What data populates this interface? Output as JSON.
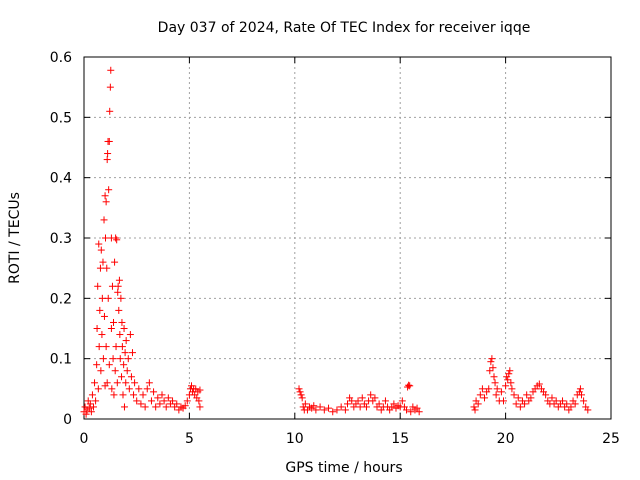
{
  "chart_data": {
    "type": "scatter",
    "title": "Day 037 of 2024, Rate Of TEC Index for receiver iqqe",
    "xlabel": "GPS time / hours",
    "ylabel": "ROTI / TECUs",
    "xlim": [
      0,
      25
    ],
    "ylim": [
      0,
      0.6
    ],
    "x_ticks": [
      "0",
      "5",
      "10",
      "15",
      "20",
      "25"
    ],
    "y_ticks": [
      "0",
      "0.1",
      "0.2",
      "0.3",
      "0.4",
      "0.5",
      "0.6"
    ],
    "grid": true,
    "marker": "plus",
    "color": "#ff0000",
    "series": [
      {
        "points": [
          [
            0.0,
            0.012
          ],
          [
            0.05,
            0.02
          ],
          [
            0.1,
            0.008
          ],
          [
            0.15,
            0.015
          ],
          [
            0.2,
            0.03
          ],
          [
            0.25,
            0.018
          ],
          [
            0.3,
            0.025
          ],
          [
            0.35,
            0.012
          ],
          [
            0.4,
            0.04
          ],
          [
            0.45,
            0.02
          ],
          [
            0.5,
            0.06
          ],
          [
            0.55,
            0.03
          ],
          [
            0.6,
            0.09
          ],
          [
            0.62,
            0.15
          ],
          [
            0.65,
            0.22
          ],
          [
            0.68,
            0.05
          ],
          [
            0.7,
            0.29
          ],
          [
            0.72,
            0.12
          ],
          [
            0.75,
            0.18
          ],
          [
            0.78,
            0.25
          ],
          [
            0.8,
            0.08
          ],
          [
            0.82,
            0.28
          ],
          [
            0.85,
            0.14
          ],
          [
            0.87,
            0.2
          ],
          [
            0.9,
            0.26
          ],
          [
            0.92,
            0.1
          ],
          [
            0.95,
            0.33
          ],
          [
            0.97,
            0.17
          ],
          [
            1.0,
            0.37
          ],
          [
            1.0,
            0.055
          ],
          [
            1.02,
            0.3
          ],
          [
            1.05,
            0.36
          ],
          [
            1.05,
            0.12
          ],
          [
            1.08,
            0.25
          ],
          [
            1.1,
            0.43
          ],
          [
            1.1,
            0.06
          ],
          [
            1.12,
            0.44
          ],
          [
            1.14,
            0.46
          ],
          [
            1.15,
            0.2
          ],
          [
            1.17,
            0.38
          ],
          [
            1.2,
            0.46
          ],
          [
            1.2,
            0.09
          ],
          [
            1.22,
            0.51
          ],
          [
            1.25,
            0.55
          ],
          [
            1.27,
            0.578
          ],
          [
            1.3,
            0.3
          ],
          [
            1.3,
            0.15
          ],
          [
            1.32,
            0.05
          ],
          [
            1.35,
            0.22
          ],
          [
            1.38,
            0.1
          ],
          [
            1.4,
            0.16
          ],
          [
            1.42,
            0.04
          ],
          [
            1.45,
            0.26
          ],
          [
            1.48,
            0.08
          ],
          [
            1.5,
            0.3
          ],
          [
            1.52,
            0.12
          ],
          [
            1.55,
            0.297
          ],
          [
            1.58,
            0.06
          ],
          [
            1.6,
            0.21
          ],
          [
            1.62,
            0.22
          ],
          [
            1.65,
            0.18
          ],
          [
            1.68,
            0.23
          ],
          [
            1.7,
            0.14
          ],
          [
            1.72,
            0.1
          ],
          [
            1.75,
            0.2
          ],
          [
            1.78,
            0.07
          ],
          [
            1.8,
            0.16
          ],
          [
            1.82,
            0.12
          ],
          [
            1.85,
            0.04
          ],
          [
            1.88,
            0.09
          ],
          [
            1.9,
            0.15
          ],
          [
            1.92,
            0.02
          ],
          [
            1.95,
            0.11
          ],
          [
            1.98,
            0.06
          ],
          [
            2.0,
            0.13
          ],
          [
            2.05,
            0.08
          ],
          [
            2.1,
            0.1
          ],
          [
            2.15,
            0.05
          ],
          [
            2.2,
            0.14
          ],
          [
            2.25,
            0.07
          ],
          [
            2.3,
            0.11
          ],
          [
            2.35,
            0.04
          ],
          [
            2.4,
            0.06
          ],
          [
            2.5,
            0.03
          ],
          [
            2.6,
            0.05
          ],
          [
            2.7,
            0.025
          ],
          [
            2.8,
            0.04
          ],
          [
            2.9,
            0.02
          ],
          [
            3.0,
            0.05
          ],
          [
            3.1,
            0.06
          ],
          [
            3.2,
            0.03
          ],
          [
            3.3,
            0.045
          ],
          [
            3.4,
            0.02
          ],
          [
            3.5,
            0.035
          ],
          [
            3.6,
            0.025
          ],
          [
            3.7,
            0.04
          ],
          [
            3.8,
            0.03
          ],
          [
            3.9,
            0.02
          ],
          [
            4.0,
            0.035
          ],
          [
            4.1,
            0.025
          ],
          [
            4.2,
            0.03
          ],
          [
            4.3,
            0.02
          ],
          [
            4.4,
            0.025
          ],
          [
            4.5,
            0.015
          ],
          [
            4.6,
            0.02
          ],
          [
            4.7,
            0.018
          ],
          [
            4.8,
            0.022
          ],
          [
            4.9,
            0.03
          ],
          [
            5.0,
            0.04
          ],
          [
            5.05,
            0.05
          ],
          [
            5.1,
            0.055
          ],
          [
            5.15,
            0.045
          ],
          [
            5.2,
            0.05
          ],
          [
            5.25,
            0.04
          ],
          [
            5.3,
            0.05
          ],
          [
            5.35,
            0.035
          ],
          [
            5.4,
            0.045
          ],
          [
            5.45,
            0.03
          ],
          [
            5.5,
            0.02
          ],
          [
            5.5,
            0.048
          ],
          [
            10.2,
            0.05
          ],
          [
            10.25,
            0.045
          ],
          [
            10.3,
            0.04
          ],
          [
            10.35,
            0.035
          ],
          [
            10.4,
            0.02
          ],
          [
            10.45,
            0.015
          ],
          [
            10.5,
            0.025
          ],
          [
            10.6,
            0.015
          ],
          [
            10.7,
            0.02
          ],
          [
            10.8,
            0.018
          ],
          [
            10.9,
            0.022
          ],
          [
            11.0,
            0.015
          ],
          [
            11.2,
            0.02
          ],
          [
            11.4,
            0.015
          ],
          [
            11.6,
            0.018
          ],
          [
            11.8,
            0.012
          ],
          [
            12.0,
            0.015
          ],
          [
            12.2,
            0.02
          ],
          [
            12.4,
            0.015
          ],
          [
            12.5,
            0.025
          ],
          [
            12.6,
            0.035
          ],
          [
            12.7,
            0.03
          ],
          [
            12.8,
            0.02
          ],
          [
            12.9,
            0.025
          ],
          [
            13.0,
            0.03
          ],
          [
            13.1,
            0.02
          ],
          [
            13.2,
            0.035
          ],
          [
            13.3,
            0.025
          ],
          [
            13.4,
            0.02
          ],
          [
            13.5,
            0.03
          ],
          [
            13.6,
            0.04
          ],
          [
            13.7,
            0.03
          ],
          [
            13.8,
            0.035
          ],
          [
            13.9,
            0.02
          ],
          [
            14.0,
            0.025
          ],
          [
            14.1,
            0.015
          ],
          [
            14.2,
            0.02
          ],
          [
            14.3,
            0.03
          ],
          [
            14.4,
            0.02
          ],
          [
            14.5,
            0.015
          ],
          [
            14.6,
            0.02
          ],
          [
            14.7,
            0.025
          ],
          [
            14.8,
            0.018
          ],
          [
            14.9,
            0.022
          ],
          [
            15.0,
            0.02
          ],
          [
            15.1,
            0.03
          ],
          [
            15.2,
            0.02
          ],
          [
            15.3,
            0.015
          ],
          [
            15.35,
            0.053
          ],
          [
            15.4,
            0.056
          ],
          [
            15.45,
            0.055
          ],
          [
            15.5,
            0.012
          ],
          [
            15.6,
            0.02
          ],
          [
            15.7,
            0.015
          ],
          [
            15.8,
            0.018
          ],
          [
            15.9,
            0.012
          ],
          [
            18.5,
            0.02
          ],
          [
            18.55,
            0.015
          ],
          [
            18.6,
            0.03
          ],
          [
            18.7,
            0.025
          ],
          [
            18.8,
            0.04
          ],
          [
            18.9,
            0.05
          ],
          [
            19.0,
            0.035
          ],
          [
            19.1,
            0.045
          ],
          [
            19.2,
            0.05
          ],
          [
            19.25,
            0.08
          ],
          [
            19.3,
            0.095
          ],
          [
            19.35,
            0.1
          ],
          [
            19.4,
            0.085
          ],
          [
            19.45,
            0.07
          ],
          [
            19.5,
            0.06
          ],
          [
            19.55,
            0.04
          ],
          [
            19.6,
            0.05
          ],
          [
            19.7,
            0.03
          ],
          [
            19.8,
            0.045
          ],
          [
            19.9,
            0.03
          ],
          [
            20.0,
            0.055
          ],
          [
            20.05,
            0.07
          ],
          [
            20.1,
            0.065
          ],
          [
            20.15,
            0.075
          ],
          [
            20.2,
            0.08
          ],
          [
            20.25,
            0.06
          ],
          [
            20.3,
            0.05
          ],
          [
            20.4,
            0.04
          ],
          [
            20.5,
            0.025
          ],
          [
            20.6,
            0.035
          ],
          [
            20.7,
            0.02
          ],
          [
            20.8,
            0.03
          ],
          [
            20.9,
            0.025
          ],
          [
            21.0,
            0.04
          ],
          [
            21.1,
            0.03
          ],
          [
            21.2,
            0.035
          ],
          [
            21.3,
            0.045
          ],
          [
            21.4,
            0.05
          ],
          [
            21.5,
            0.055
          ],
          [
            21.6,
            0.058
          ],
          [
            21.7,
            0.05
          ],
          [
            21.8,
            0.045
          ],
          [
            21.9,
            0.04
          ],
          [
            22.0,
            0.03
          ],
          [
            22.1,
            0.025
          ],
          [
            22.2,
            0.035
          ],
          [
            22.3,
            0.025
          ],
          [
            22.4,
            0.03
          ],
          [
            22.5,
            0.02
          ],
          [
            22.6,
            0.025
          ],
          [
            22.7,
            0.03
          ],
          [
            22.8,
            0.02
          ],
          [
            22.9,
            0.025
          ],
          [
            23.0,
            0.015
          ],
          [
            23.1,
            0.02
          ],
          [
            23.2,
            0.03
          ],
          [
            23.3,
            0.025
          ],
          [
            23.4,
            0.04
          ],
          [
            23.5,
            0.045
          ],
          [
            23.55,
            0.05
          ],
          [
            23.6,
            0.04
          ],
          [
            23.7,
            0.03
          ],
          [
            23.8,
            0.02
          ],
          [
            23.9,
            0.015
          ]
        ]
      }
    ]
  }
}
